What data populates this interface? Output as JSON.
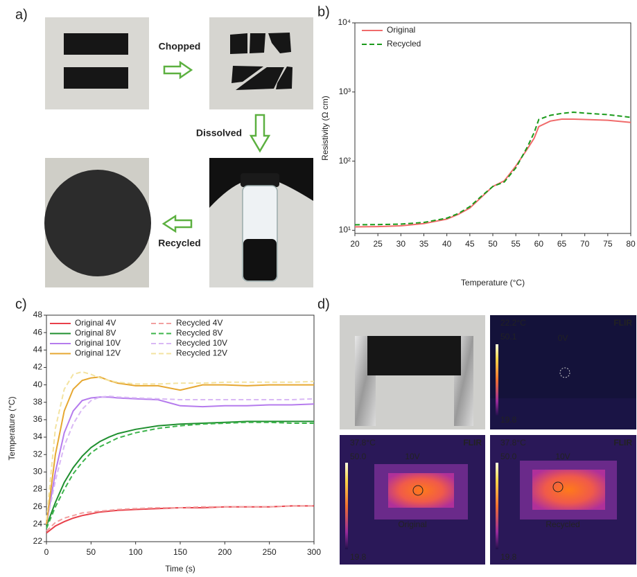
{
  "panel_labels": [
    "a)",
    "b)",
    "c)",
    "d)"
  ],
  "process_steps": [
    "Chopped",
    "Dissolved",
    "Recycled"
  ],
  "chart_data": [
    {
      "type": "line",
      "x_label": "Temperature (°C)",
      "y_label": "Resistivity (Ω cm)",
      "log_y": true,
      "legend": "upper left",
      "grid": false,
      "x": [
        20,
        25,
        30,
        35,
        40,
        42.5,
        45,
        47.5,
        50,
        52.5,
        55,
        57.5,
        59,
        60,
        62.5,
        65,
        67.5,
        70,
        75,
        80
      ],
      "xlim": [
        20,
        80
      ],
      "xticks": [
        20,
        25,
        30,
        35,
        40,
        45,
        50,
        55,
        60,
        65,
        70,
        75,
        80
      ],
      "ylim": [
        9,
        10000
      ],
      "yticks": [
        {
          "value": 10,
          "label": "10¹"
        },
        {
          "value": 100,
          "label": "10²"
        },
        {
          "value": 1000,
          "label": "10³"
        },
        {
          "value": 10000,
          "label": "10⁴"
        }
      ],
      "series": [
        {
          "name": "Original",
          "color": "#f06a6a",
          "dashed": false,
          "values": [
            11.2,
            11.3,
            11.6,
            12.5,
            14.5,
            17,
            21,
            30,
            43,
            52,
            85,
            150,
            215,
            316,
            380,
            405,
            405,
            400,
            390,
            363
          ]
        },
        {
          "name": "Recycled",
          "color": "#1a9a1a",
          "dashed": true,
          "values": [
            12,
            12.1,
            12.3,
            13,
            15,
            17.5,
            22,
            31,
            43,
            50,
            80,
            160,
            260,
            400,
            460,
            490,
            510,
            495,
            470,
            430
          ]
        }
      ]
    },
    {
      "type": "line",
      "x_label": "Time (s)",
      "y_label": "Temperature (°C)",
      "log_y": false,
      "legend": "upper left",
      "grid": false,
      "legend_columns": 2,
      "x": [
        0,
        10,
        20,
        30,
        40,
        50,
        60,
        70,
        80,
        100,
        125,
        150,
        175,
        200,
        225,
        250,
        275,
        300
      ],
      "xlim": [
        0,
        300
      ],
      "xticks": [
        0,
        50,
        100,
        150,
        200,
        250,
        300
      ],
      "ylim": [
        22,
        48
      ],
      "yticks": [
        22,
        24,
        26,
        28,
        30,
        32,
        34,
        36,
        38,
        40,
        42,
        44,
        46,
        48
      ],
      "series": [
        {
          "name": "Original 4V",
          "color": "#e8404a",
          "dashed": false,
          "values": [
            23,
            23.8,
            24.3,
            24.7,
            25.0,
            25.2,
            25.4,
            25.5,
            25.6,
            25.7,
            25.8,
            25.9,
            25.9,
            26.0,
            26.0,
            26.0,
            26.1,
            26.1
          ]
        },
        {
          "name": "Recycled 4V",
          "color": "#f2a0a0",
          "dashed": true,
          "values": [
            23.2,
            24.2,
            24.7,
            25.0,
            25.3,
            25.4,
            25.5,
            25.6,
            25.7,
            25.8,
            25.9,
            25.9,
            26.0,
            26.0,
            26.0,
            26.0,
            26.1,
            26.1
          ]
        },
        {
          "name": "Original 8V",
          "color": "#1f8f2f",
          "dashed": false,
          "values": [
            23.8,
            26.5,
            28.8,
            30.5,
            31.8,
            32.8,
            33.5,
            34.0,
            34.4,
            34.9,
            35.3,
            35.5,
            35.6,
            35.7,
            35.8,
            35.8,
            35.8,
            35.8
          ]
        },
        {
          "name": "Recycled 8V",
          "color": "#3cb44b",
          "dashed": true,
          "values": [
            23.5,
            26,
            28,
            29.8,
            31.1,
            32.2,
            32.9,
            33.4,
            33.9,
            34.5,
            35.0,
            35.3,
            35.5,
            35.6,
            35.7,
            35.7,
            35.6,
            35.6
          ]
        },
        {
          "name": "Original 10V",
          "color": "#b57bed",
          "dashed": false,
          "values": [
            24,
            30,
            34.5,
            37,
            38.2,
            38.5,
            38.6,
            38.6,
            38.5,
            38.4,
            38.3,
            37.6,
            37.5,
            37.6,
            37.6,
            37.7,
            37.7,
            37.8
          ]
        },
        {
          "name": "Recycled 10V",
          "color": "#d9b8f5",
          "dashed": true,
          "values": [
            24,
            29,
            33,
            35.5,
            37.2,
            38.2,
            38.6,
            38.7,
            38.6,
            38.5,
            38.4,
            38.3,
            38.3,
            38.3,
            38.3,
            38.3,
            38.3,
            38.4
          ]
        },
        {
          "name": "Original 12V",
          "color": "#e6a730",
          "dashed": false,
          "values": [
            24,
            32,
            37,
            39.5,
            40.5,
            40.8,
            40.9,
            40.5,
            40.2,
            39.9,
            39.9,
            39.4,
            40.0,
            40.0,
            39.9,
            40.0,
            40.0,
            40.0
          ]
        },
        {
          "name": "Recycled 12V",
          "color": "#f3e3a0",
          "dashed": true,
          "values": [
            24.5,
            35,
            39.5,
            41.2,
            41.5,
            41.2,
            40.8,
            40.5,
            40.3,
            40.1,
            40.1,
            40.2,
            40.2,
            40.3,
            40.3,
            40.3,
            40.3,
            40.4
          ]
        }
      ]
    }
  ],
  "thermal_images": [
    {
      "max_temp": "22.2°C",
      "scale_max": "50.1",
      "scale_min": "19.8",
      "voltage": "0V",
      "brand": "FLIR"
    },
    {
      "max_temp": "37.8°C",
      "scale_max": "50.0",
      "scale_min": "19.8",
      "voltage": "10V",
      "caption": "Original",
      "brand": "FLIR"
    },
    {
      "max_temp": "37.8°C",
      "scale_max": "50.0",
      "scale_min": "19.8",
      "voltage": "10V",
      "caption": "Recycled",
      "brand": "FLIR"
    }
  ]
}
